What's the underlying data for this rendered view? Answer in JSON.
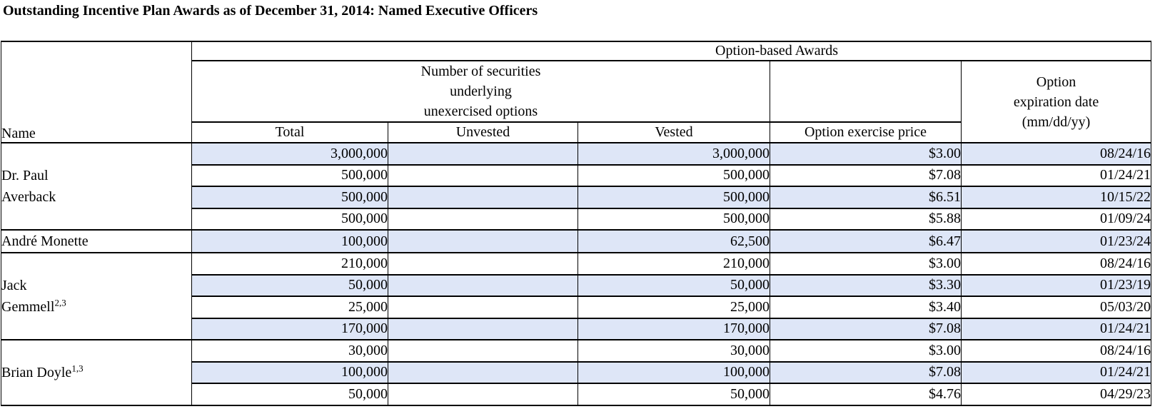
{
  "title": "Outstanding Incentive Plan Awards as of December 31, 2014: Named Executive Officers",
  "table": {
    "headers": {
      "name": "Name",
      "option_based_awards": "Option-based Awards",
      "securities": "Number of securities\nunderlying\nunexercised options",
      "total": "Total",
      "unvested": "Unvested",
      "vested": "Vested",
      "exercise_price": "Option exercise price",
      "expiration": "Option\nexpiration date\n(mm/dd/yy)"
    },
    "officers": [
      {
        "name_lines": [
          "Dr. Paul",
          "Averback"
        ],
        "superscript": null,
        "rows": [
          {
            "total": "3,000,000",
            "unvested": "",
            "vested": "3,000,000",
            "price": "$3.00",
            "expiry": "08/24/16",
            "shaded": true
          },
          {
            "total": "500,000",
            "unvested": "",
            "vested": "500,000",
            "price": "$7.08",
            "expiry": "01/24/21",
            "shaded": false
          },
          {
            "total": "500,000",
            "unvested": "",
            "vested": "500,000",
            "price": "$6.51",
            "expiry": "10/15/22",
            "shaded": true
          },
          {
            "total": "500,000",
            "unvested": "",
            "vested": "500,000",
            "price": "$5.88",
            "expiry": "01/09/24",
            "shaded": false
          }
        ]
      },
      {
        "name_lines": [
          "André Monette"
        ],
        "superscript": null,
        "rows": [
          {
            "total": "100,000",
            "unvested": "",
            "vested": "62,500",
            "price": "$6.47",
            "expiry": "01/23/24",
            "shaded": true
          }
        ]
      },
      {
        "name_lines": [
          "Jack",
          "Gemmell"
        ],
        "superscript": "2,3",
        "rows": [
          {
            "total": "210,000",
            "unvested": "",
            "vested": "210,000",
            "price": "$3.00",
            "expiry": "08/24/16",
            "shaded": false
          },
          {
            "total": "50,000",
            "unvested": "",
            "vested": "50,000",
            "price": "$3.30",
            "expiry": "01/23/19",
            "shaded": true
          },
          {
            "total": "25,000",
            "unvested": "",
            "vested": "25,000",
            "price": "$3.40",
            "expiry": "05/03/20",
            "shaded": false
          },
          {
            "total": "170,000",
            "unvested": "",
            "vested": "170,000",
            "price": "$7.08",
            "expiry": "01/24/21",
            "shaded": true
          }
        ]
      },
      {
        "name_lines": [
          "Brian Doyle"
        ],
        "superscript": "1,3",
        "rows": [
          {
            "total": "30,000",
            "unvested": "",
            "vested": "30,000",
            "price": "$3.00",
            "expiry": "08/24/16",
            "shaded": false
          },
          {
            "total": "100,000",
            "unvested": "",
            "vested": "100,000",
            "price": "$7.08",
            "expiry": "01/24/21",
            "shaded": true
          },
          {
            "total": "50,000",
            "unvested": "",
            "vested": "50,000",
            "price": "$4.76",
            "expiry": "04/29/23",
            "shaded": false
          }
        ]
      }
    ]
  },
  "colors": {
    "shaded_row": "#dee6f7",
    "border": "#000000",
    "background": "#ffffff",
    "text": "#000000"
  }
}
